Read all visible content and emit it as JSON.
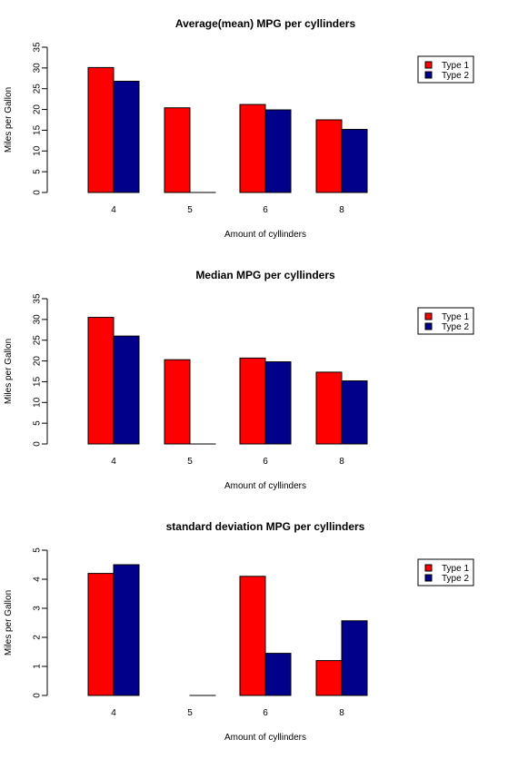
{
  "colors": {
    "type1": "#ff0000",
    "type2": "#00008b"
  },
  "chart_data": [
    {
      "type": "bar",
      "title": "Average(mean) MPG per cyllinders",
      "xlabel": "Amount of cyllinders",
      "ylabel": "Miles per Gallon",
      "categories": [
        "4",
        "5",
        "6",
        "8"
      ],
      "ylim": [
        0,
        35
      ],
      "yticks": [
        "0",
        "5",
        "10",
        "15",
        "20",
        "25",
        "30",
        "35"
      ],
      "legend_position": "top-right",
      "grid": false,
      "series": [
        {
          "name": "Type 1",
          "color": "#ff0000",
          "values": [
            30.1,
            20.4,
            21.2,
            17.5
          ]
        },
        {
          "name": "Type 2",
          "color": "#00008b",
          "values": [
            26.8,
            0,
            19.9,
            15.2
          ]
        }
      ]
    },
    {
      "type": "bar",
      "title": "Median MPG per cyllinders",
      "xlabel": "Amount of cyllinders",
      "ylabel": "Miles per Gallon",
      "categories": [
        "4",
        "5",
        "6",
        "8"
      ],
      "ylim": [
        0,
        35
      ],
      "yticks": [
        "0",
        "5",
        "10",
        "15",
        "20",
        "25",
        "30",
        "35"
      ],
      "legend_position": "top-right",
      "grid": false,
      "series": [
        {
          "name": "Type 1",
          "color": "#ff0000",
          "values": [
            30.5,
            20.3,
            20.7,
            17.3
          ]
        },
        {
          "name": "Type 2",
          "color": "#00008b",
          "values": [
            26.0,
            0,
            19.8,
            15.2
          ]
        }
      ]
    },
    {
      "type": "bar",
      "title": "standard deviation MPG per cyllinders",
      "xlabel": "Amount of cyllinders",
      "ylabel": "Miles per Gallon",
      "categories": [
        "4",
        "5",
        "6",
        "8"
      ],
      "ylim": [
        0,
        5
      ],
      "yticks": [
        "0",
        "1",
        "2",
        "3",
        "4",
        "5"
      ],
      "legend_position": "top-right",
      "grid": false,
      "series": [
        {
          "name": "Type 1",
          "color": "#ff0000",
          "values": [
            4.2,
            null,
            4.1,
            1.2
          ]
        },
        {
          "name": "Type 2",
          "color": "#00008b",
          "values": [
            4.5,
            0,
            1.45,
            2.57
          ]
        }
      ]
    }
  ]
}
